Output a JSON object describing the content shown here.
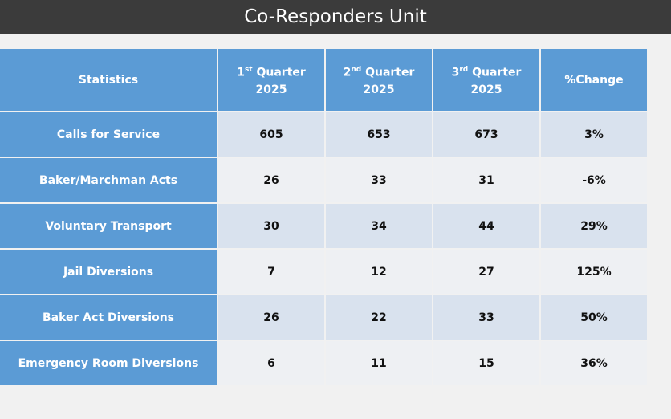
{
  "header": {
    "title": "Co-Responders Unit"
  },
  "table": {
    "columns": [
      {
        "label": "Statistics"
      },
      {
        "number": "1",
        "suffix": "st",
        "word": "Quarter",
        "year": "2025"
      },
      {
        "number": "2",
        "suffix": "nd",
        "word": "Quarter",
        "year": "2025"
      },
      {
        "number": "3",
        "suffix": "rd",
        "word": "Quarter",
        "year": "2025"
      },
      {
        "label": "%Change"
      }
    ],
    "rows": [
      [
        "Calls for Service",
        605,
        653,
        673,
        "3%"
      ],
      [
        "Baker/Marchman Acts",
        26,
        33,
        31,
        "-6%"
      ],
      [
        "Voluntary Transport",
        30,
        34,
        44,
        "29%"
      ],
      [
        "Jail Diversions",
        7,
        12,
        27,
        "125%"
      ],
      [
        "Baker Act Diversions",
        26,
        22,
        33,
        "50%"
      ],
      [
        "Emergency Room Diversions",
        6,
        11,
        15,
        "36%"
      ]
    ]
  }
}
